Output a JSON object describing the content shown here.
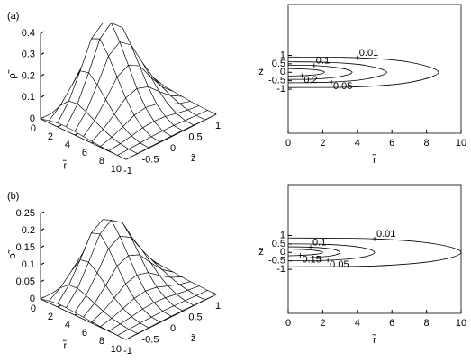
{
  "chart_data": [
    {
      "type": "surface",
      "label": "(a)",
      "x_label": "r̃",
      "y_label": "z̃",
      "z_label": "ρ̃",
      "x": [
        0,
        1,
        2,
        3,
        4,
        5,
        6,
        7,
        8,
        9,
        10
      ],
      "y": [
        -1,
        -0.75,
        -0.5,
        -0.25,
        0,
        0.25,
        0.5,
        0.75,
        1
      ],
      "values": [
        [
          0,
          0,
          0,
          0,
          0,
          0,
          0,
          0,
          0
        ],
        [
          0.011,
          0.055,
          0.121,
          0.194,
          0.22,
          0.194,
          0.121,
          0.055,
          0.011
        ],
        [
          0.019,
          0.095,
          0.209,
          0.334,
          0.38,
          0.334,
          0.209,
          0.095,
          0.019
        ],
        [
          0.02,
          0.1,
          0.22,
          0.352,
          0.4,
          0.352,
          0.22,
          0.1,
          0.02
        ],
        [
          0.017,
          0.083,
          0.182,
          0.29,
          0.33,
          0.29,
          0.182,
          0.083,
          0.017
        ],
        [
          0.012,
          0.06,
          0.132,
          0.211,
          0.24,
          0.211,
          0.132,
          0.06,
          0.012
        ],
        [
          0.008,
          0.038,
          0.083,
          0.132,
          0.15,
          0.132,
          0.083,
          0.038,
          0.008
        ],
        [
          0.004,
          0.02,
          0.044,
          0.07,
          0.08,
          0.07,
          0.044,
          0.02,
          0.004
        ],
        [
          0.002,
          0.009,
          0.019,
          0.031,
          0.035,
          0.031,
          0.019,
          0.009,
          0.002
        ],
        [
          0,
          0.002,
          0.005,
          0.008,
          0.009,
          0.008,
          0.005,
          0.002,
          0
        ],
        [
          0,
          0.001,
          0.002,
          0.003,
          0.003,
          0.003,
          0.002,
          0.001,
          0
        ]
      ],
      "xlim": [
        0,
        10
      ],
      "ylim": [
        -1,
        1
      ],
      "zlim": [
        0,
        0.4
      ],
      "xticks": [
        0,
        2,
        4,
        6,
        8,
        10
      ],
      "yticks": [
        -1,
        -0.5,
        0,
        0.5,
        1
      ],
      "zticks": [
        0,
        0.1,
        0.2,
        0.3,
        0.4
      ]
    },
    {
      "type": "contour",
      "x_label": "r̃",
      "y_label": "z̃",
      "xlim": [
        0,
        10
      ],
      "ylim": [
        -3.6,
        4
      ],
      "xticks": [
        0,
        2,
        4,
        6,
        8,
        10
      ],
      "yticks": [
        -1,
        -0.5,
        0,
        0.5,
        1
      ],
      "contours": [
        {
          "level": 0.01,
          "x": [
            0,
            4,
            7,
            8.7,
            7,
            4,
            0
          ],
          "y": [
            0.9,
            0.86,
            0.6,
            0,
            -0.6,
            -0.86,
            -0.9
          ]
        },
        {
          "level": 0.05,
          "x": [
            0,
            2.5,
            4.5,
            5.7,
            4.5,
            2.5,
            0
          ],
          "y": [
            0.62,
            0.58,
            0.4,
            0,
            -0.4,
            -0.58,
            -0.62
          ]
        },
        {
          "level": 0.1,
          "x": [
            0,
            1.5,
            3,
            3.7,
            3,
            1.5,
            0
          ],
          "y": [
            0.42,
            0.4,
            0.25,
            0,
            -0.25,
            -0.4,
            -0.42
          ]
        },
        {
          "level": 0.2,
          "x": [
            0,
            0.8,
            1.7,
            2.1,
            1.7,
            0.8,
            0
          ],
          "y": [
            0.22,
            0.2,
            0.13,
            0,
            -0.13,
            -0.2,
            -0.22
          ]
        }
      ]
    },
    {
      "type": "surface",
      "label": "(b)",
      "x_label": "r̃",
      "y_label": "z̃",
      "z_label": "ρ̃",
      "x": [
        0,
        1,
        2,
        3,
        4,
        5,
        6,
        7,
        8,
        9,
        10
      ],
      "y": [
        -1,
        -0.75,
        -0.5,
        -0.25,
        0,
        0.25,
        0.5,
        0.75,
        1
      ],
      "values": [
        [
          0,
          0,
          0,
          0,
          0,
          0,
          0,
          0,
          0
        ],
        [
          0.006,
          0.028,
          0.061,
          0.097,
          0.11,
          0.097,
          0.061,
          0.028,
          0.006
        ],
        [
          0.01,
          0.048,
          0.105,
          0.167,
          0.19,
          0.167,
          0.105,
          0.048,
          0.01
        ],
        [
          0.01,
          0.05,
          0.11,
          0.176,
          0.2,
          0.176,
          0.11,
          0.05,
          0.01
        ],
        [
          0.008,
          0.041,
          0.091,
          0.145,
          0.165,
          0.145,
          0.091,
          0.041,
          0.008
        ],
        [
          0.006,
          0.03,
          0.066,
          0.106,
          0.12,
          0.106,
          0.066,
          0.03,
          0.006
        ],
        [
          0.004,
          0.019,
          0.041,
          0.066,
          0.075,
          0.066,
          0.041,
          0.019,
          0.004
        ],
        [
          0.002,
          0.01,
          0.022,
          0.035,
          0.04,
          0.035,
          0.022,
          0.01,
          0.002
        ],
        [
          0.001,
          0.005,
          0.01,
          0.016,
          0.018,
          0.016,
          0.01,
          0.005,
          0.001
        ],
        [
          0,
          0.001,
          0.003,
          0.004,
          0.005,
          0.004,
          0.003,
          0.001,
          0
        ],
        [
          0,
          0.001,
          0.001,
          0.002,
          0.002,
          0.002,
          0.001,
          0.001,
          0
        ]
      ],
      "xlim": [
        0,
        10
      ],
      "ylim": [
        -1,
        1
      ],
      "zlim": [
        0,
        0.25
      ],
      "xticks": [
        0,
        2,
        4,
        6,
        8,
        10
      ],
      "yticks": [
        -1,
        -0.5,
        0,
        0.5,
        1
      ],
      "zticks": [
        0,
        0.05,
        0.1,
        0.15,
        0.2,
        0.25
      ]
    },
    {
      "type": "contour",
      "x_label": "r̃",
      "y_label": "z̃",
      "xlim": [
        0,
        10
      ],
      "ylim": [
        -3.6,
        4
      ],
      "xticks": [
        0,
        2,
        4,
        6,
        8,
        10
      ],
      "yticks": [
        -1,
        -0.5,
        0,
        0.5,
        1
      ],
      "contours": [
        {
          "level": 0.01,
          "x": [
            0,
            5,
            8.5,
            10,
            8.5,
            5,
            0
          ],
          "y": [
            0.85,
            0.8,
            0.5,
            0,
            -0.5,
            -0.8,
            -0.85
          ]
        },
        {
          "level": 0.05,
          "x": [
            0,
            2.3,
            4.2,
            5,
            4.2,
            2.3,
            0
          ],
          "y": [
            0.5,
            0.47,
            0.3,
            0,
            -0.3,
            -0.47,
            -0.5
          ]
        },
        {
          "level": 0.1,
          "x": [
            0,
            1.3,
            2.5,
            3,
            2.5,
            1.3,
            0
          ],
          "y": [
            0.33,
            0.31,
            0.2,
            0,
            -0.2,
            -0.31,
            -0.33
          ]
        },
        {
          "level": 0.15,
          "x": [
            0,
            0.7,
            1.6,
            2,
            1.6,
            0.7,
            0
          ],
          "y": [
            0.2,
            0.18,
            0.11,
            0,
            -0.11,
            -0.18,
            -0.2
          ]
        }
      ]
    }
  ]
}
